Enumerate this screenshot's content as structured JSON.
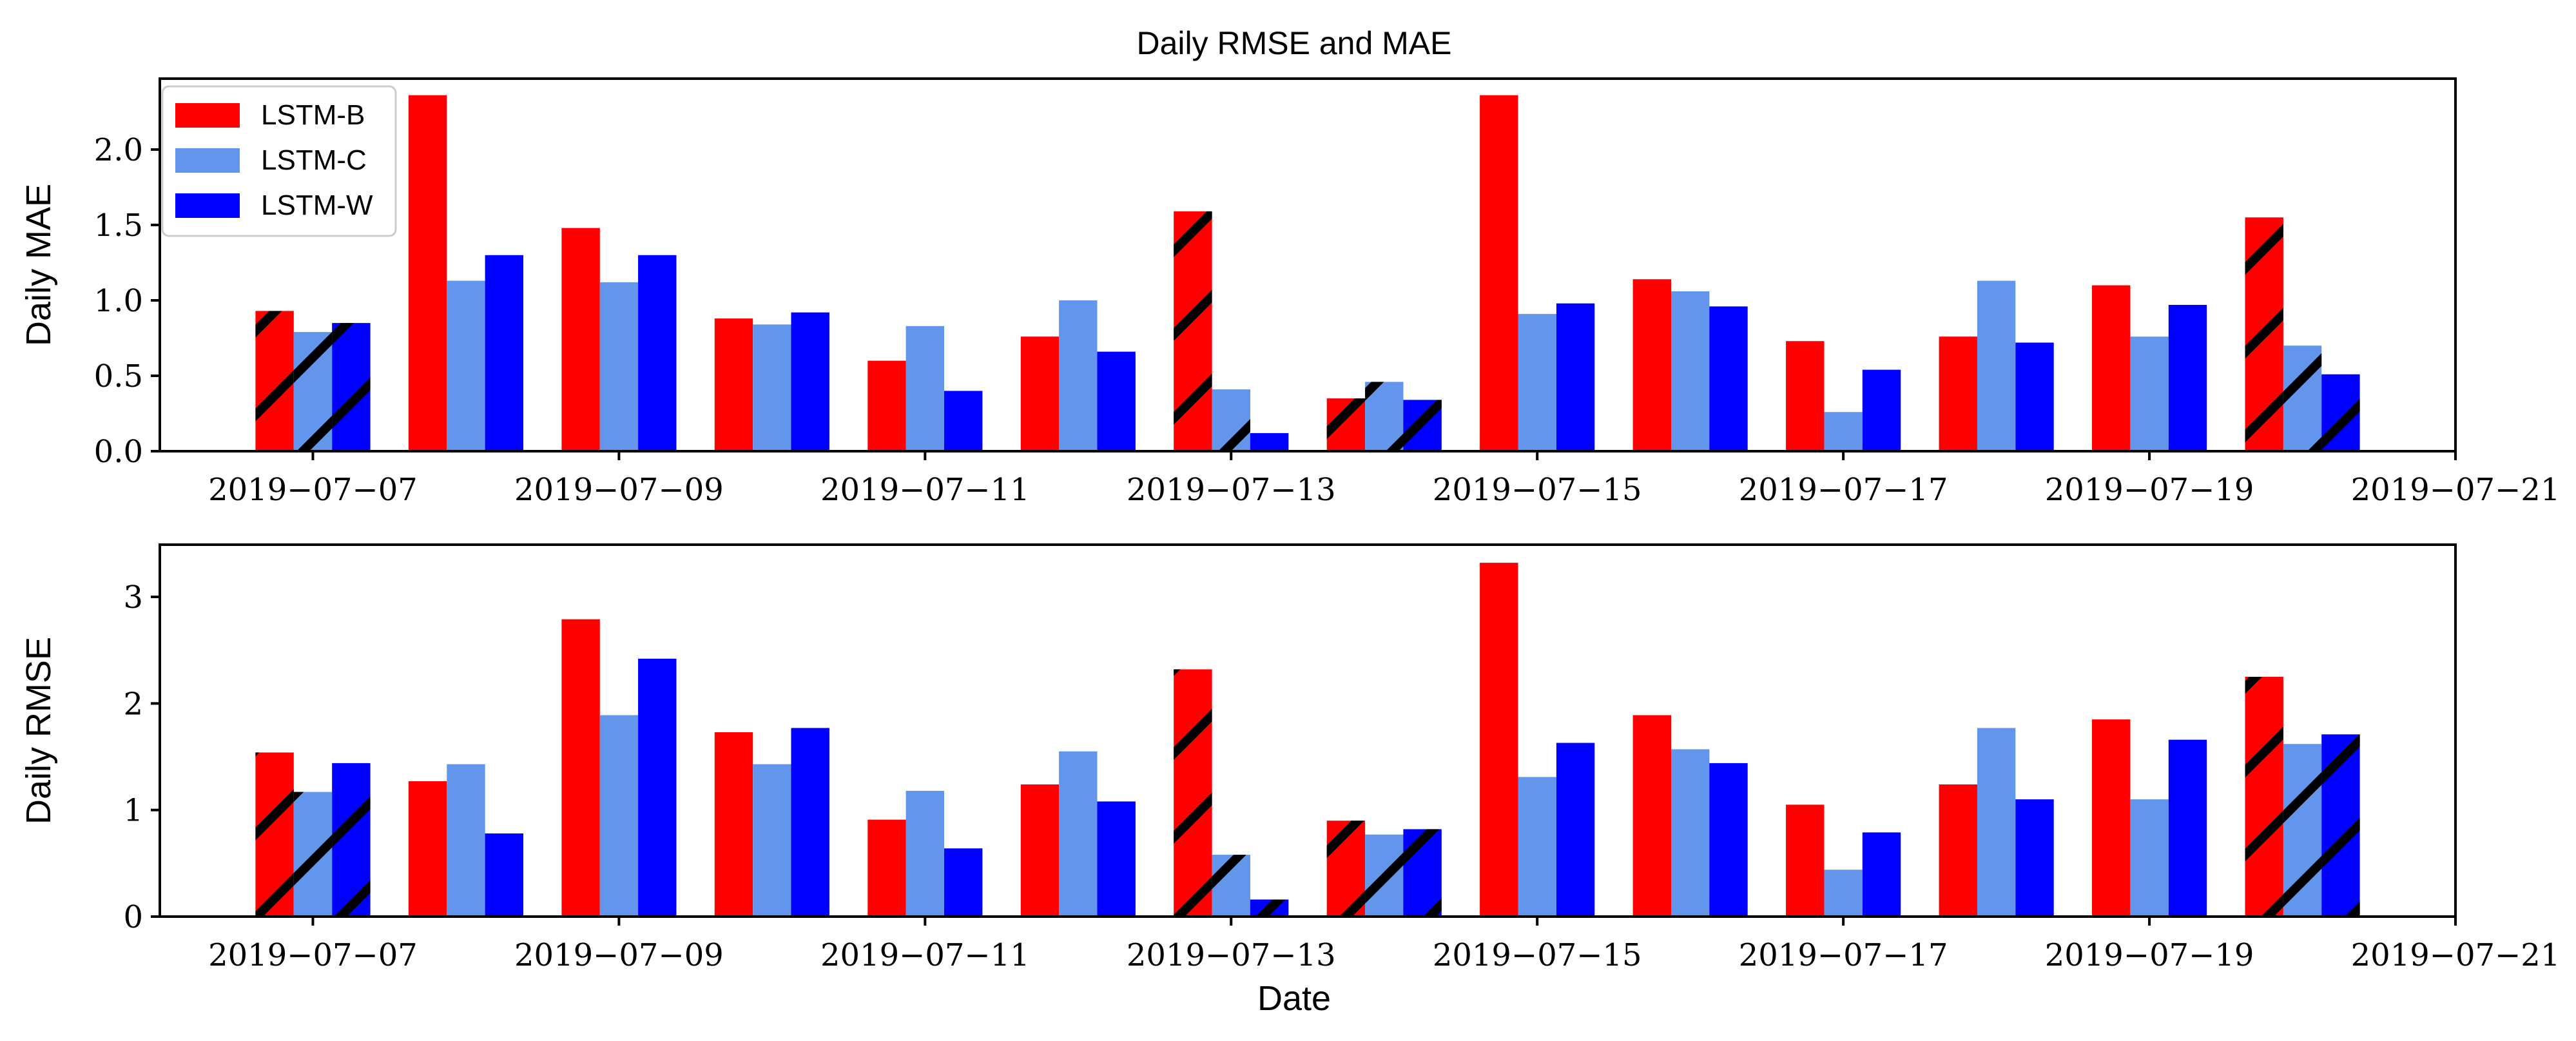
{
  "title": "Daily RMSE and MAE",
  "xlabel": "Date",
  "legend": {
    "placement": "top-left",
    "entries": [
      {
        "name": "LSTM-B",
        "color": "#ff0000"
      },
      {
        "name": "LSTM-C",
        "color": "#6495ed"
      },
      {
        "name": "LSTM-W",
        "color": "#0000ff"
      }
    ]
  },
  "chart_data": [
    {
      "type": "bar",
      "id": "mae",
      "ylabel": "Daily MAE",
      "ylim": [
        0,
        2.47
      ],
      "yticks": [
        "0.0",
        "0.5",
        "1.0",
        "1.5",
        "2.0"
      ],
      "ytick_values": [
        0,
        0.5,
        1.0,
        1.5,
        2.0
      ],
      "xticks": [
        "2019−07−07",
        "2019−07−09",
        "2019−07−11",
        "2019−07−13",
        "2019−07−15",
        "2019−07−17",
        "2019−07−19",
        "2019−07−21"
      ],
      "xtick_dates": [
        "2019-07-07",
        "2019-07-09",
        "2019-07-11",
        "2019-07-13",
        "2019-07-15",
        "2019-07-17",
        "2019-07-19",
        "2019-07-21"
      ],
      "xlim": [
        "2019-07-06 00:00",
        "2019-07-21 00:00"
      ],
      "dates": [
        "2019-07-07",
        "2019-07-08",
        "2019-07-09",
        "2019-07-10",
        "2019-07-11",
        "2019-07-12",
        "2019-07-13",
        "2019-07-14",
        "2019-07-15",
        "2019-07-16",
        "2019-07-17",
        "2019-07-18",
        "2019-07-19",
        "2019-07-20"
      ],
      "hatched_dates": [
        "2019-07-07",
        "2019-07-13",
        "2019-07-14",
        "2019-07-20"
      ],
      "series": [
        {
          "name": "LSTM-B",
          "values": [
            0.93,
            2.36,
            1.48,
            0.88,
            0.6,
            0.76,
            1.59,
            0.35,
            2.36,
            1.14,
            0.73,
            0.76,
            1.1,
            1.55
          ]
        },
        {
          "name": "LSTM-C",
          "values": [
            0.79,
            1.13,
            1.12,
            0.84,
            0.83,
            1.0,
            0.41,
            0.46,
            0.91,
            1.06,
            0.26,
            1.13,
            0.76,
            0.7
          ]
        },
        {
          "name": "LSTM-W",
          "values": [
            0.85,
            1.3,
            1.3,
            0.92,
            0.4,
            0.66,
            0.12,
            0.34,
            0.98,
            0.96,
            0.54,
            0.72,
            0.97,
            0.51
          ]
        }
      ]
    },
    {
      "type": "bar",
      "id": "rmse",
      "ylabel": "Daily RMSE",
      "ylim": [
        0,
        3.49
      ],
      "yticks": [
        "0",
        "1",
        "2",
        "3"
      ],
      "ytick_values": [
        0,
        1,
        2,
        3
      ],
      "xticks": [
        "2019−07−07",
        "2019−07−09",
        "2019−07−11",
        "2019−07−13",
        "2019−07−15",
        "2019−07−17",
        "2019−07−19",
        "2019−07−21"
      ],
      "xtick_dates": [
        "2019-07-07",
        "2019-07-09",
        "2019-07-11",
        "2019-07-13",
        "2019-07-15",
        "2019-07-17",
        "2019-07-19",
        "2019-07-21"
      ],
      "xlim": [
        "2019-07-06 00:00",
        "2019-07-21 00:00"
      ],
      "dates": [
        "2019-07-07",
        "2019-07-08",
        "2019-07-09",
        "2019-07-10",
        "2019-07-11",
        "2019-07-12",
        "2019-07-13",
        "2019-07-14",
        "2019-07-15",
        "2019-07-16",
        "2019-07-17",
        "2019-07-18",
        "2019-07-19",
        "2019-07-20"
      ],
      "hatched_dates": [
        "2019-07-07",
        "2019-07-13",
        "2019-07-14",
        "2019-07-20"
      ],
      "series": [
        {
          "name": "LSTM-B",
          "values": [
            1.54,
            1.27,
            2.79,
            1.73,
            0.91,
            1.24,
            2.32,
            0.9,
            3.32,
            1.89,
            1.05,
            1.24,
            1.85,
            2.25
          ]
        },
        {
          "name": "LSTM-C",
          "values": [
            1.17,
            1.43,
            1.89,
            1.43,
            1.18,
            1.55,
            0.58,
            0.77,
            1.31,
            1.57,
            0.44,
            1.77,
            1.1,
            1.62
          ]
        },
        {
          "name": "LSTM-W",
          "values": [
            1.44,
            0.78,
            2.42,
            1.77,
            0.64,
            1.08,
            0.16,
            0.82,
            1.63,
            1.44,
            0.79,
            1.1,
            1.66,
            1.71
          ]
        }
      ]
    }
  ]
}
